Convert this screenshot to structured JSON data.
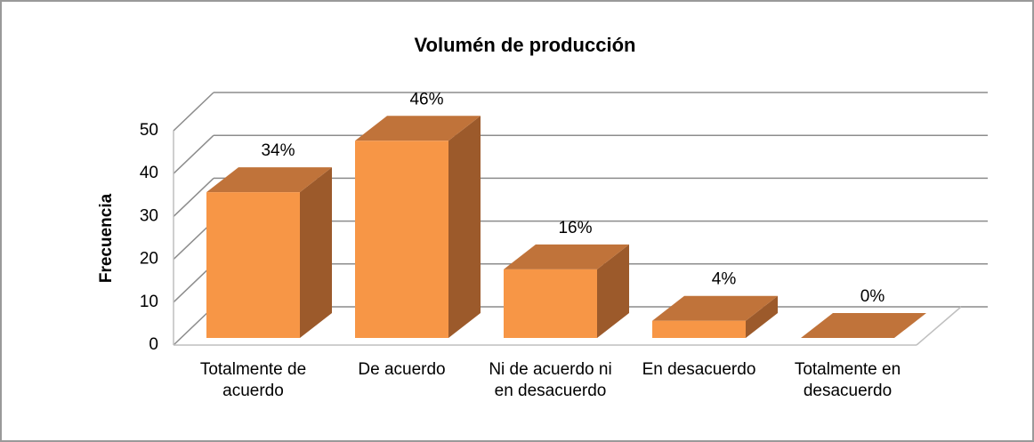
{
  "chart_data": {
    "type": "bar3d",
    "title": "Volumén de producción",
    "y_label": "Frecuencia",
    "categories": [
      "Totalmente de acuerdo",
      "De acuerdo",
      "Ni de acuerdo ni en desacuerdo",
      "En desacuerdo",
      "Totalmente en desacuerdo"
    ],
    "values": [
      34,
      46,
      16,
      4,
      0
    ],
    "value_labels": [
      "34%",
      "46%",
      "16%",
      "4%",
      "0%"
    ],
    "color": "#f79646",
    "ylim": [
      0,
      50
    ],
    "yticks": [
      0,
      10,
      20,
      30,
      40,
      50
    ],
    "grid": true
  }
}
